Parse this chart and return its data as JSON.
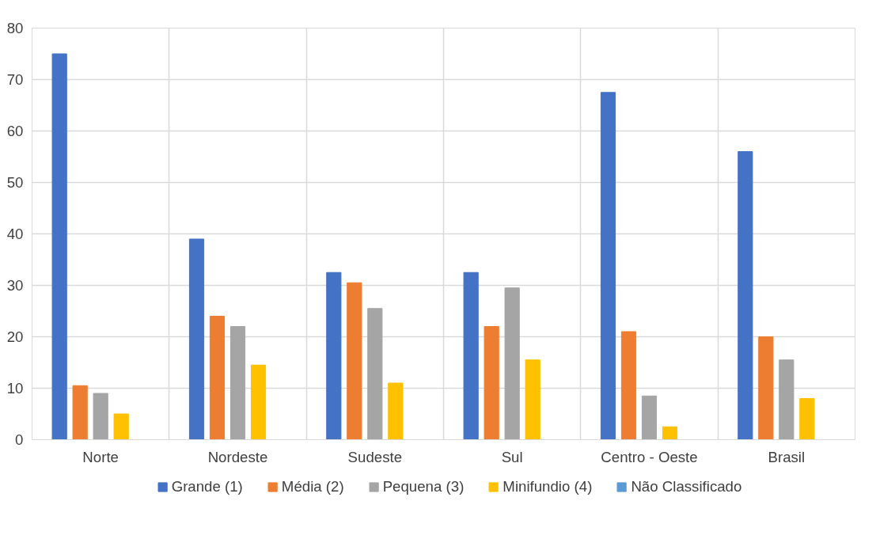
{
  "chart_data": {
    "type": "bar",
    "categories": [
      "Norte",
      "Nordeste",
      "Sudeste",
      "Sul",
      "Centro - Oeste",
      "Brasil"
    ],
    "series": [
      {
        "name": "Grande (1)",
        "color": "#4472c4",
        "values": [
          75,
          39,
          32.5,
          32.5,
          67.5,
          56
        ]
      },
      {
        "name": "Média (2)",
        "color": "#ed7d31",
        "values": [
          10.5,
          24,
          30.5,
          22,
          21,
          20
        ]
      },
      {
        "name": "Pequena (3)",
        "color": "#a5a5a5",
        "values": [
          9,
          22,
          25.5,
          29.5,
          8.5,
          15.5
        ]
      },
      {
        "name": "Minifundio (4)",
        "color": "#ffc000",
        "values": [
          5,
          14.5,
          11,
          15.5,
          2.5,
          8
        ]
      },
      {
        "name": "Não Classificado",
        "color": "#5b9bd5",
        "values": [
          0,
          0,
          0,
          0,
          0,
          0
        ]
      }
    ],
    "ylim": [
      0,
      80
    ],
    "yticks": [
      0,
      10,
      20,
      30,
      40,
      50,
      60,
      70,
      80
    ],
    "grid": true,
    "legend": "bottom"
  }
}
